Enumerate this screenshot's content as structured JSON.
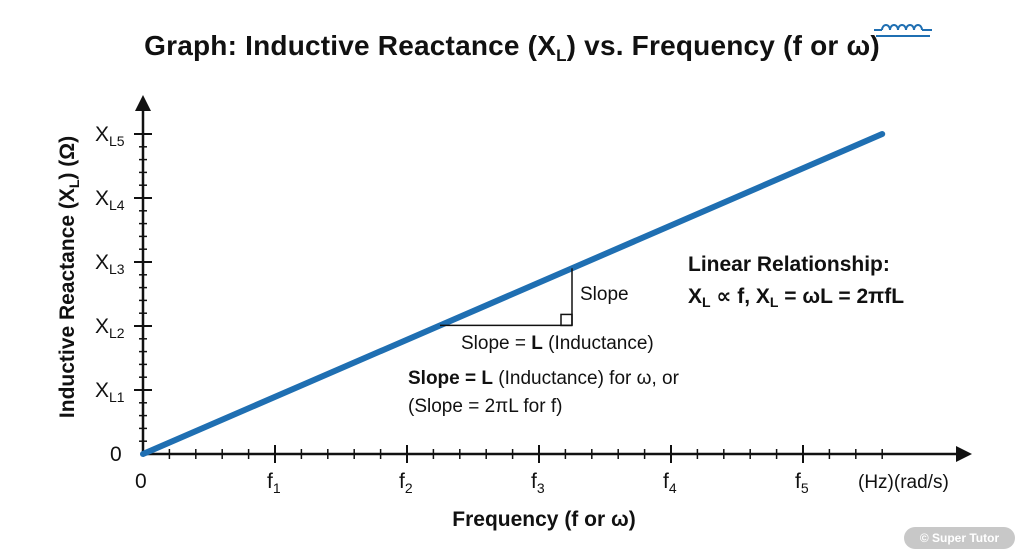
{
  "title": {
    "main": "Graph: Inductive Reactance (X",
    "sub": "L",
    "rest": ") vs. Frequency (f or ω)"
  },
  "colors": {
    "line": "#1f6fb2",
    "axis": "#111111",
    "watermark_bg": "#c8c8c8"
  },
  "icons": {
    "title_icon": "inductor-coil-icon"
  },
  "chart_data": {
    "type": "line",
    "title": "Graph: Inductive Reactance (XL) vs. Frequency (f or ω)",
    "xlabel": "Frequency (f or ω)",
    "ylabel_parts": {
      "a": "Inductive Reactance (X",
      "sub": "L",
      "b": ") (Ω)"
    },
    "x_units": "(Hz)(rad/s)",
    "x_origin_label": "0",
    "y_origin_label": "0",
    "x_ticks": [
      {
        "base": "f",
        "sub": "1",
        "value": 1
      },
      {
        "base": "f",
        "sub": "2",
        "value": 2
      },
      {
        "base": "f",
        "sub": "3",
        "value": 3
      },
      {
        "base": "f",
        "sub": "4",
        "value": 4
      },
      {
        "base": "f",
        "sub": "5",
        "value": 5
      }
    ],
    "y_ticks": [
      {
        "base": "X",
        "sub": "L1",
        "value": 1
      },
      {
        "base": "X",
        "sub": "L2",
        "value": 2
      },
      {
        "base": "X",
        "sub": "L3",
        "value": 3
      },
      {
        "base": "X",
        "sub": "L4",
        "value": 4
      },
      {
        "base": "X",
        "sub": "L5",
        "value": 5
      }
    ],
    "minor_ticks_per_major": 5,
    "xlim": [
      0,
      5.6
    ],
    "ylim": [
      0,
      5
    ],
    "series": [
      {
        "x": [
          0,
          5.6
        ],
        "y": [
          0,
          5
        ]
      }
    ],
    "slope_triangle": {
      "x_start": 2.25,
      "x_end": 3.25
    },
    "annotations": {
      "slope_side": "Slope",
      "slope_base": {
        "a": "Slope = ",
        "b": "L",
        "c": " (Inductance)"
      },
      "slope_note_line1": {
        "a": "Slope = L",
        "b": " (Inductance) for ω, or"
      },
      "slope_note_line2": "(Slope = 2πL for f)",
      "relationship_title": "Linear Relationship:",
      "relationship_formula": {
        "x1": "X",
        "s1": "L",
        "m1": " ∝ f,  X",
        "s2": "L",
        "m2": " = ωL = 2πfL"
      }
    }
  },
  "watermark": "© Super Tutor"
}
